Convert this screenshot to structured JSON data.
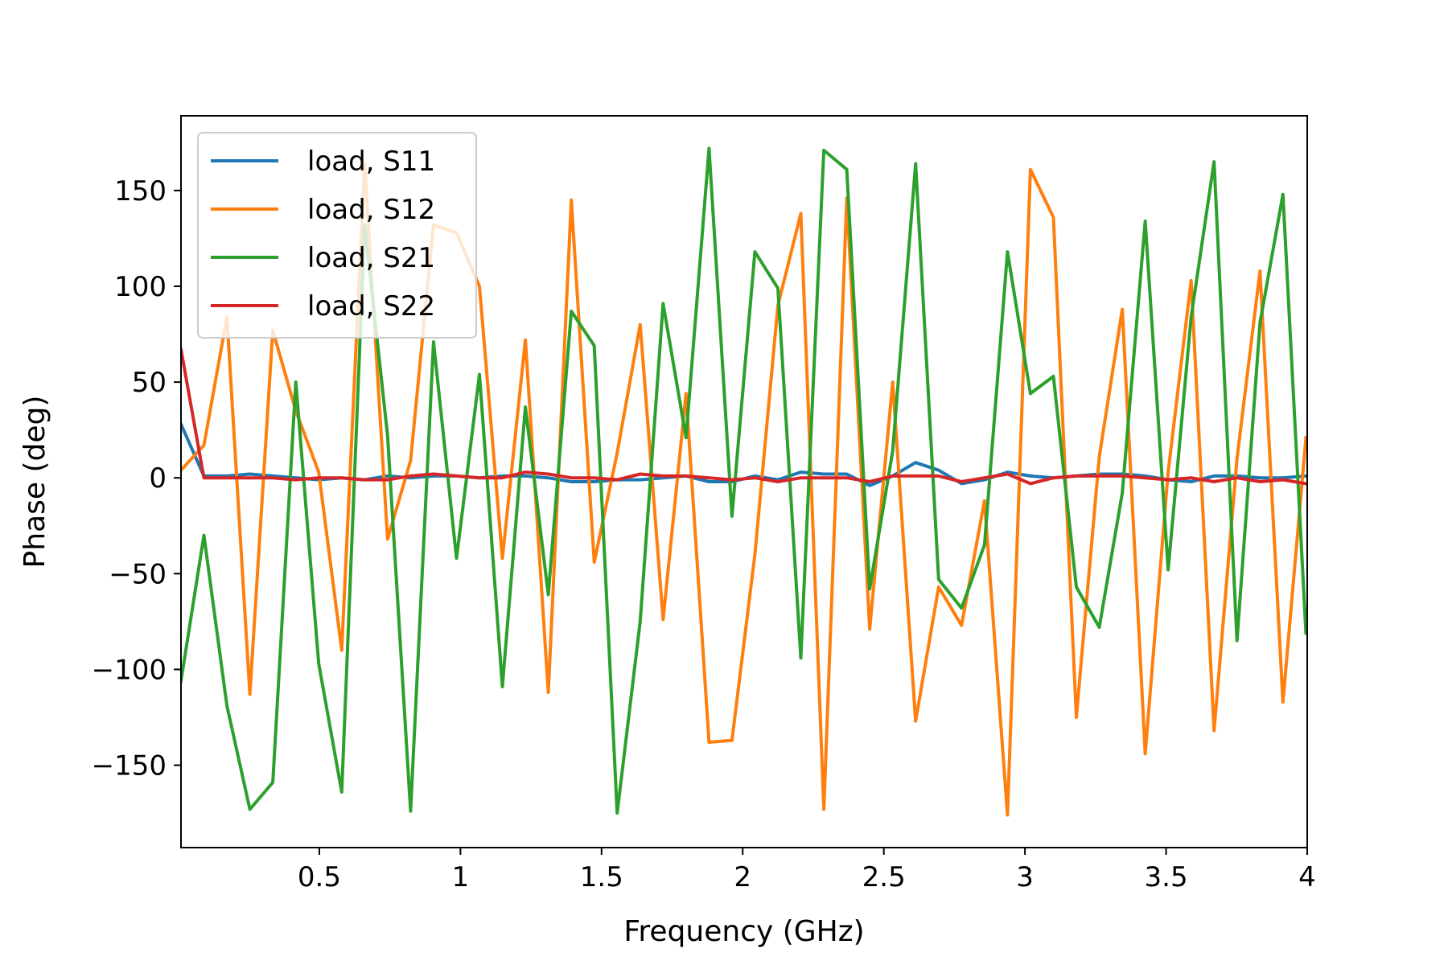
{
  "chart_data": {
    "type": "line",
    "xlabel": "Frequency (GHz)",
    "ylabel": "Phase (deg)",
    "xlim": [
      0.01,
      4.0
    ],
    "ylim": [
      -193,
      189
    ],
    "grid": false,
    "legend_position": "top-left",
    "x_ticks": [
      0.5,
      1,
      1.5,
      2,
      2.5,
      3,
      3.5,
      4
    ],
    "x_tick_labels": [
      "0.5",
      "1",
      "1.5",
      "2",
      "2.5",
      "3",
      "3.5",
      "4"
    ],
    "y_ticks": [
      150,
      100,
      50,
      0,
      -50,
      -100,
      -150
    ],
    "y_tick_labels": [
      "150",
      "100",
      "50",
      "0",
      "−50",
      "−100",
      "−150"
    ],
    "x": [
      0.01,
      0.0913,
      0.1727,
      0.254,
      0.3353,
      0.4167,
      0.498,
      0.5793,
      0.6607,
      0.742,
      0.8233,
      0.9047,
      0.986,
      1.0673,
      1.1487,
      1.23,
      1.3113,
      1.3927,
      1.474,
      1.5553,
      1.6367,
      1.718,
      1.7993,
      1.8807,
      1.962,
      2.0433,
      2.1247,
      2.206,
      2.2873,
      2.3687,
      2.45,
      2.5313,
      2.6127,
      2.694,
      2.7753,
      2.8567,
      2.938,
      3.0193,
      3.1007,
      3.182,
      3.2633,
      3.3447,
      3.426,
      3.5073,
      3.5887,
      3.67,
      3.7513,
      3.8327,
      3.914,
      3.9953
    ],
    "series": [
      {
        "name": "load, S11",
        "color": "#1f77b4",
        "values": [
          28,
          1,
          1,
          2,
          1,
          0,
          -1,
          0,
          -1,
          1,
          0,
          1,
          1,
          0,
          1,
          1,
          0,
          -2,
          -2,
          -1,
          -1,
          0,
          1,
          -2,
          -2,
          1,
          -1,
          3,
          2,
          2,
          -4,
          1,
          8,
          4,
          -3,
          -1,
          3,
          1,
          0,
          1,
          2,
          2,
          1,
          -1,
          -2,
          1,
          1,
          0,
          0,
          1
        ]
      },
      {
        "name": "load, S12",
        "color": "#ff7f0e",
        "values": [
          4,
          17,
          84,
          -113,
          77,
          35,
          3,
          -90,
          164,
          -32,
          9,
          132,
          128,
          100,
          -42,
          72,
          -112,
          145,
          -44,
          13,
          80,
          -74,
          44,
          -138,
          -137,
          -40,
          90,
          138,
          -173,
          146,
          -79,
          50,
          -127,
          -57,
          -77,
          -12,
          -176,
          161,
          136,
          -125,
          11,
          88,
          -144,
          3,
          103,
          -132,
          10,
          108,
          -117,
          21
        ]
      },
      {
        "name": "load, S21",
        "color": "#2ca02c",
        "values": [
          -106,
          -30,
          -119,
          -173,
          -159,
          50,
          -97,
          -164,
          132,
          22,
          -174,
          71,
          -42,
          54,
          -109,
          37,
          -61,
          87,
          69,
          -175,
          -75,
          91,
          21,
          172,
          -20,
          118,
          99,
          -94,
          171,
          161,
          -58,
          14,
          164,
          -53,
          -68,
          -35,
          118,
          44,
          53,
          -57,
          -78,
          -8,
          134,
          -48,
          84,
          165,
          -85,
          81,
          148,
          -81
        ]
      },
      {
        "name": "load, S22",
        "color": "#d62728",
        "values": [
          67,
          0,
          0,
          0,
          0,
          -1,
          0,
          0,
          -1,
          -1,
          1,
          2,
          1,
          0,
          0,
          3,
          2,
          0,
          0,
          -1,
          2,
          1,
          1,
          0,
          -1,
          0,
          -2,
          0,
          0,
          0,
          -2,
          1,
          1,
          1,
          -2,
          0,
          2,
          -3,
          0,
          1,
          1,
          1,
          0,
          -1,
          0,
          -2,
          0,
          -2,
          -1,
          -3
        ]
      }
    ]
  }
}
